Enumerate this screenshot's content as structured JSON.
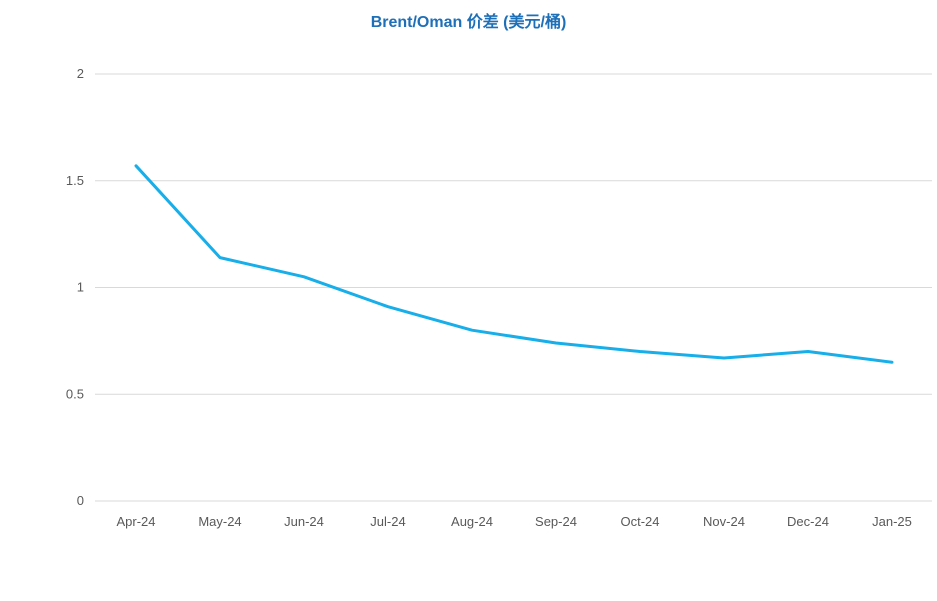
{
  "chart_data": {
    "type": "line",
    "title": "Brent/Oman 价差 (美元/桶)",
    "xlabel": "",
    "ylabel": "",
    "categories": [
      "Apr-24",
      "May-24",
      "Jun-24",
      "Jul-24",
      "Aug-24",
      "Sep-24",
      "Oct-24",
      "Nov-24",
      "Dec-24",
      "Jan-25"
    ],
    "y_ticks": [
      "0",
      "0.5",
      "1",
      "1.5",
      "2"
    ],
    "ylim": [
      0,
      2
    ],
    "grid": true,
    "legend": "none",
    "series": [
      {
        "values": [
          1.57,
          1.14,
          1.05,
          0.91,
          0.8,
          0.74,
          0.7,
          0.67,
          0.7,
          0.65
        ],
        "color": "#17aee9"
      }
    ]
  }
}
